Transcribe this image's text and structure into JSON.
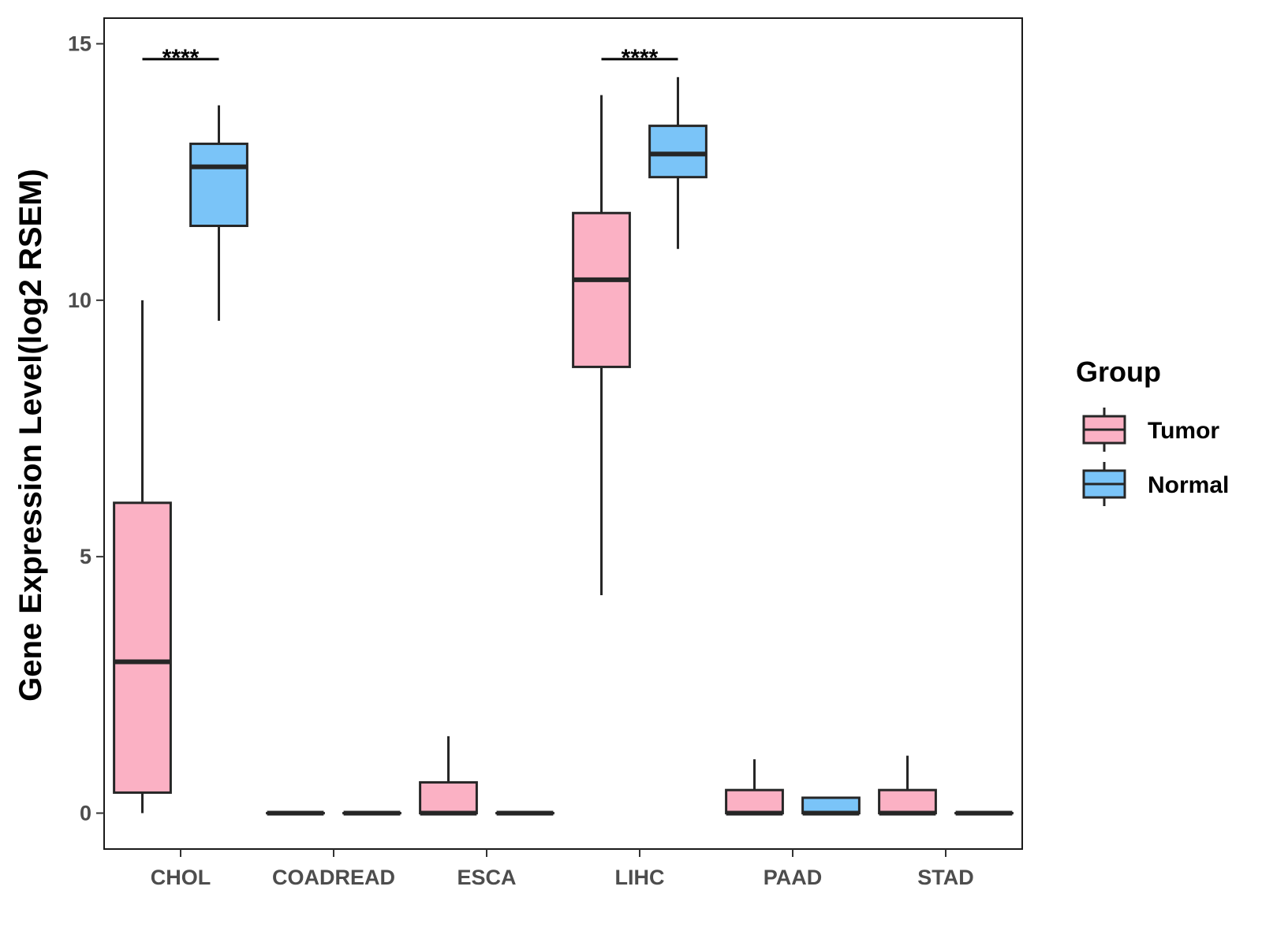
{
  "chart_data": {
    "type": "boxplot",
    "title": "",
    "xlabel": "",
    "ylabel": "Gene Expression Level(log2 RSEM)",
    "ylim": [
      -0.7,
      15.5
    ],
    "yticks": [
      0,
      5,
      10,
      15
    ],
    "grid": false,
    "categories": [
      "CHOL",
      "COADREAD",
      "ESCA",
      "LIHC",
      "PAAD",
      "STAD"
    ],
    "legend": {
      "title": "Group",
      "position": "right",
      "entries": [
        {
          "name": "Tumor",
          "color": "#FBB1C4"
        },
        {
          "name": "Normal",
          "color": "#7AC4F8"
        }
      ]
    },
    "series": [
      {
        "name": "Tumor",
        "color": "#FBB1C4",
        "boxes": [
          {
            "category": "CHOL",
            "min": 0,
            "q1": 0.4,
            "median": 2.95,
            "q3": 6.05,
            "max": 10.0
          },
          {
            "category": "COADREAD",
            "min": 0,
            "q1": 0,
            "median": 0,
            "q3": 0,
            "max": 0
          },
          {
            "category": "ESCA",
            "min": 0,
            "q1": 0,
            "median": 0,
            "q3": 0.6,
            "max": 1.5
          },
          {
            "category": "LIHC",
            "min": 4.25,
            "q1": 8.7,
            "median": 10.4,
            "q3": 11.7,
            "max": 14.0
          },
          {
            "category": "PAAD",
            "min": 0,
            "q1": 0,
            "median": 0,
            "q3": 0.45,
            "max": 1.05
          },
          {
            "category": "STAD",
            "min": 0,
            "q1": 0,
            "median": 0,
            "q3": 0.45,
            "max": 1.12
          }
        ]
      },
      {
        "name": "Normal",
        "color": "#7AC4F8",
        "boxes": [
          {
            "category": "CHOL",
            "min": 9.6,
            "q1": 11.45,
            "median": 12.6,
            "q3": 13.05,
            "max": 13.8
          },
          {
            "category": "COADREAD",
            "min": 0,
            "q1": 0,
            "median": 0,
            "q3": 0,
            "max": 0
          },
          {
            "category": "ESCA",
            "min": 0,
            "q1": 0,
            "median": 0,
            "q3": 0,
            "max": 0
          },
          {
            "category": "LIHC",
            "min": 11.0,
            "q1": 12.4,
            "median": 12.85,
            "q3": 13.4,
            "max": 14.35
          },
          {
            "category": "PAAD",
            "min": 0,
            "q1": 0,
            "median": 0,
            "q3": 0.3,
            "max": 0.3
          },
          {
            "category": "STAD",
            "min": 0,
            "q1": 0,
            "median": 0,
            "q3": 0,
            "max": 0
          }
        ]
      }
    ],
    "annotations": [
      {
        "category": "CHOL",
        "label": "****",
        "y": 14.7
      },
      {
        "category": "LIHC",
        "label": "****",
        "y": 14.7
      }
    ]
  }
}
